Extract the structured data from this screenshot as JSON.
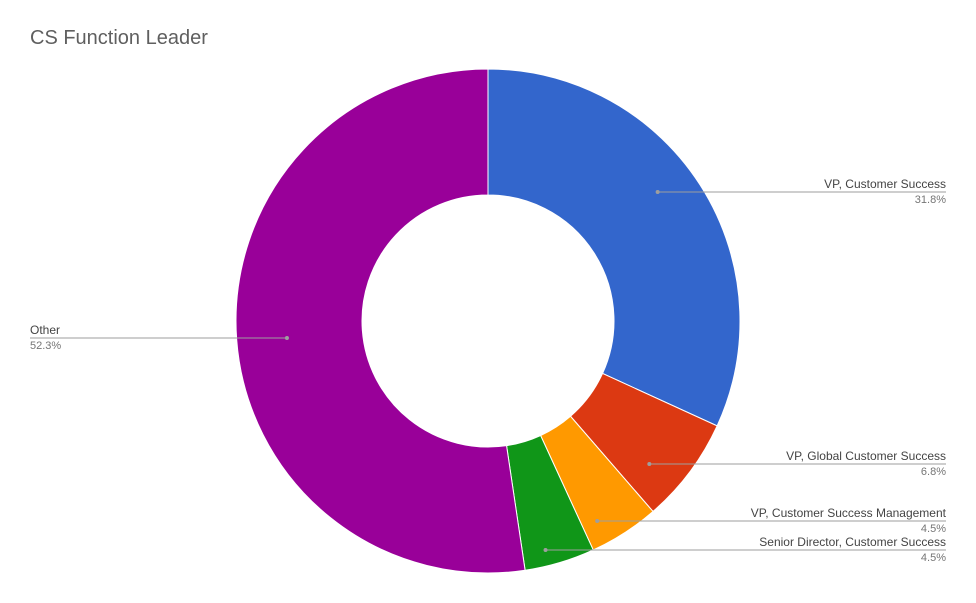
{
  "chart_data": {
    "type": "pie",
    "style": "donut",
    "title": "CS Function Leader",
    "legend": "none",
    "slices": [
      {
        "label": "VP, Customer Success",
        "value": 31.8,
        "display": "31.8%",
        "color": "#3366cc"
      },
      {
        "label": "VP, Global Customer Success",
        "value": 6.8,
        "display": "6.8%",
        "color": "#dc3912"
      },
      {
        "label": "VP, Customer Success Management",
        "value": 4.5,
        "display": "4.5%",
        "color": "#ff9900"
      },
      {
        "label": "Senior Director, Customer Success",
        "value": 4.5,
        "display": "4.5%",
        "color": "#109618"
      },
      {
        "label": "Other",
        "value": 52.3,
        "display": "52.3%",
        "color": "#990099"
      }
    ]
  }
}
